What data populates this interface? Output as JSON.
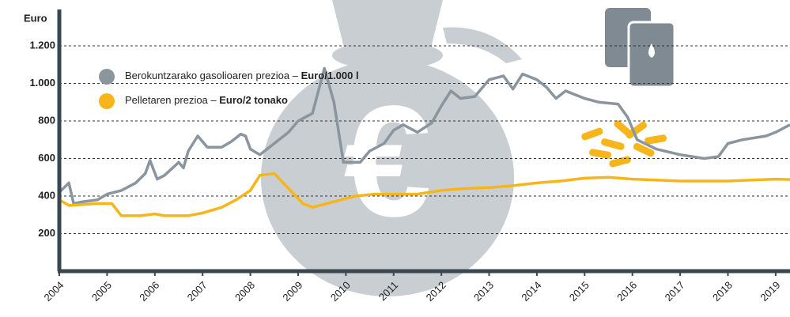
{
  "chart_data": {
    "type": "line",
    "y_label": "Euro",
    "xlim": [
      2004,
      2019.3
    ],
    "xticks": [
      2004,
      2005,
      2006,
      2007,
      2008,
      2009,
      2010,
      2011,
      2012,
      2013,
      2014,
      2015,
      2016,
      2017,
      2018,
      2019
    ],
    "ylim": [
      0,
      1200
    ],
    "yticks": [
      200,
      400,
      600,
      800,
      {
        "value": 1000,
        "label": "1.000"
      },
      {
        "value": 1200,
        "label": "1.200"
      }
    ],
    "grid": true,
    "series": [
      {
        "name": "Berokuntzarako gasolioaren prezioa –",
        "unit": "Euro/1.000 l",
        "color": "#8a959e",
        "x": [
          2004.0,
          2004.2,
          2004.3,
          2004.5,
          2004.8,
          2005.0,
          2005.3,
          2005.6,
          2005.8,
          2005.9,
          2006.05,
          2006.2,
          2006.5,
          2006.6,
          2006.7,
          2006.9,
          2007.1,
          2007.4,
          2007.6,
          2007.8,
          2007.9,
          2008.0,
          2008.2,
          2008.5,
          2008.8,
          2009.0,
          2009.3,
          2009.55,
          2009.75,
          2009.95,
          2010.3,
          2010.5,
          2010.8,
          2011.0,
          2011.2,
          2011.5,
          2011.8,
          2012.0,
          2012.2,
          2012.4,
          2012.7,
          2013.0,
          2013.3,
          2013.5,
          2013.7,
          2014.0,
          2014.2,
          2014.4,
          2014.6,
          2014.8,
          2015.0,
          2015.3,
          2015.7,
          2015.9,
          2016.1,
          2016.5,
          2017.0,
          2017.5,
          2017.8,
          2018.0,
          2018.3,
          2018.8,
          2019.0,
          2019.3
        ],
        "values": [
          420,
          470,
          360,
          370,
          380,
          410,
          430,
          470,
          520,
          590,
          490,
          510,
          580,
          550,
          640,
          720,
          660,
          660,
          690,
          730,
          720,
          650,
          620,
          680,
          740,
          800,
          840,
          1080,
          900,
          580,
          580,
          640,
          680,
          750,
          780,
          740,
          790,
          880,
          960,
          920,
          930,
          1020,
          1040,
          970,
          1050,
          1020,
          980,
          920,
          960,
          940,
          920,
          900,
          890,
          820,
          700,
          650,
          620,
          600,
          610,
          680,
          700,
          720,
          740,
          780
        ]
      },
      {
        "name": "Pelletaren prezioa –",
        "unit": "Euro/2 tonako",
        "color": "#f7b51c",
        "x": [
          2004.0,
          2004.2,
          2004.8,
          2005.1,
          2005.3,
          2005.7,
          2006.0,
          2006.2,
          2006.7,
          2007.0,
          2007.4,
          2007.7,
          2008.0,
          2008.2,
          2008.5,
          2008.8,
          2009.1,
          2009.3,
          2009.6,
          2009.9,
          2010.2,
          2010.6,
          2011.0,
          2011.5,
          2012.0,
          2012.5,
          2013.0,
          2013.5,
          2014.0,
          2014.5,
          2015.0,
          2015.5,
          2016.0,
          2016.5,
          2017.0,
          2018.0,
          2018.5,
          2019.0,
          2019.3
        ],
        "values": [
          380,
          350,
          360,
          360,
          295,
          295,
          305,
          295,
          295,
          310,
          340,
          380,
          430,
          510,
          520,
          440,
          360,
          340,
          360,
          380,
          400,
          410,
          410,
          410,
          430,
          440,
          445,
          455,
          470,
          480,
          495,
          500,
          490,
          485,
          480,
          480,
          485,
          490,
          488
        ]
      }
    ]
  }
}
